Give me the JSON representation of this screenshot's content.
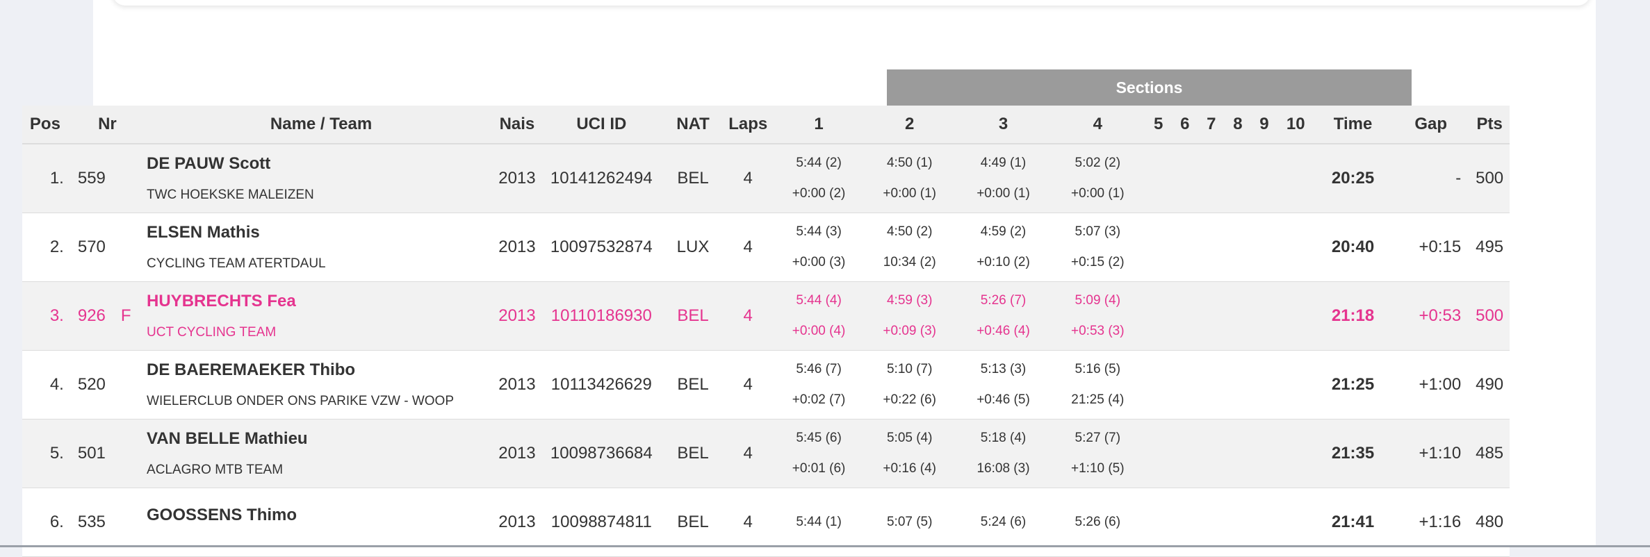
{
  "table": {
    "sections_label": "Sections",
    "headers": {
      "pos": "Pos",
      "nr": "Nr",
      "name": "Name / Team",
      "nais": "Nais",
      "uci": "UCI ID",
      "nat": "NAT",
      "laps": "Laps",
      "s1": "1",
      "s2": "2",
      "s3": "3",
      "s4": "4",
      "s5": "5",
      "s6": "6",
      "s7": "7",
      "s8": "8",
      "s9": "9",
      "s10": "10",
      "time": "Time",
      "gap": "Gap",
      "pts": "Pts"
    },
    "rows": [
      {
        "pos": "1.",
        "nr": "559",
        "flag": "",
        "rider": "DE PAUW Scott",
        "team": "TWC HOEKSKE MALEIZEN",
        "nais": "2013",
        "uci": "10141262494",
        "nat": "BEL",
        "laps": "4",
        "sections": [
          {
            "t": "5:44 (2)",
            "g": "+0:00 (2)"
          },
          {
            "t": "4:50 (1)",
            "g": "+0:00 (1)"
          },
          {
            "t": "4:49 (1)",
            "g": "+0:00 (1)"
          },
          {
            "t": "5:02 (2)",
            "g": "+0:00 (1)"
          }
        ],
        "time": "20:25",
        "gap": "-",
        "pts": "500"
      },
      {
        "pos": "2.",
        "nr": "570",
        "flag": "",
        "rider": "ELSEN Mathis",
        "team": "CYCLING TEAM ATERTDAUL",
        "nais": "2013",
        "uci": "10097532874",
        "nat": "LUX",
        "laps": "4",
        "sections": [
          {
            "t": "5:44 (3)",
            "g": "+0:00 (3)"
          },
          {
            "t": "4:50 (2)",
            "g": "10:34 (2)"
          },
          {
            "t": "4:59 (2)",
            "g": "+0:10 (2)"
          },
          {
            "t": "5:07 (3)",
            "g": "+0:15 (2)"
          }
        ],
        "time": "20:40",
        "gap": "+0:15",
        "pts": "495"
      },
      {
        "pos": "3.",
        "nr": "926",
        "flag": "F",
        "rider": "HUYBRECHTS Fea",
        "team": "UCT CYCLING TEAM",
        "nais": "2013",
        "uci": "10110186930",
        "nat": "BEL",
        "laps": "4",
        "sections": [
          {
            "t": "5:44 (4)",
            "g": "+0:00 (4)"
          },
          {
            "t": "4:59 (3)",
            "g": "+0:09 (3)"
          },
          {
            "t": "5:26 (7)",
            "g": "+0:46 (4)"
          },
          {
            "t": "5:09 (4)",
            "g": "+0:53 (3)"
          }
        ],
        "time": "21:18",
        "gap": "+0:53",
        "pts": "500"
      },
      {
        "pos": "4.",
        "nr": "520",
        "flag": "",
        "rider": "DE BAEREMAEKER Thibo",
        "team": "WIELERCLUB ONDER ONS PARIKE VZW - WOOP",
        "nais": "2013",
        "uci": "10113426629",
        "nat": "BEL",
        "laps": "4",
        "sections": [
          {
            "t": "5:46 (7)",
            "g": "+0:02 (7)"
          },
          {
            "t": "5:10 (7)",
            "g": "+0:22 (6)"
          },
          {
            "t": "5:13 (3)",
            "g": "+0:46 (5)"
          },
          {
            "t": "5:16 (5)",
            "g": "21:25 (4)"
          }
        ],
        "time": "21:25",
        "gap": "+1:00",
        "pts": "490"
      },
      {
        "pos": "5.",
        "nr": "501",
        "flag": "",
        "rider": "VAN BELLE Mathieu",
        "team": "ACLAGRO MTB TEAM",
        "nais": "2013",
        "uci": "10098736684",
        "nat": "BEL",
        "laps": "4",
        "sections": [
          {
            "t": "5:45 (6)",
            "g": "+0:01 (6)"
          },
          {
            "t": "5:05 (4)",
            "g": "+0:16 (4)"
          },
          {
            "t": "5:18 (4)",
            "g": "16:08 (3)"
          },
          {
            "t": "5:27 (7)",
            "g": "+1:10 (5)"
          }
        ],
        "time": "21:35",
        "gap": "+1:10",
        "pts": "485"
      },
      {
        "pos": "6.",
        "nr": "535",
        "flag": "",
        "rider": "GOOSSENS Thimo",
        "team": "",
        "nais": "2013",
        "uci": "10098874811",
        "nat": "BEL",
        "laps": "4",
        "sections": [
          {
            "t": "5:44 (1)",
            "g": ""
          },
          {
            "t": "5:07 (5)",
            "g": ""
          },
          {
            "t": "5:24 (6)",
            "g": ""
          },
          {
            "t": "5:26 (6)",
            "g": ""
          }
        ],
        "time": "21:41",
        "gap": "+1:16",
        "pts": "480"
      }
    ]
  }
}
